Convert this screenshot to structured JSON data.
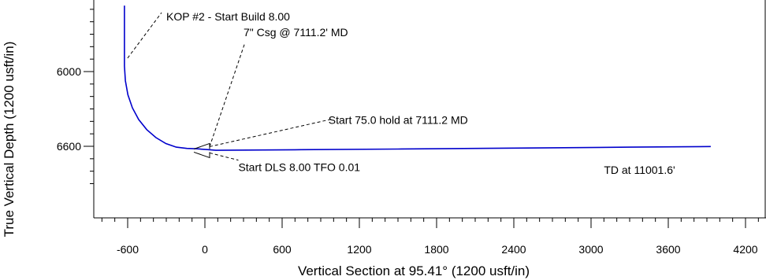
{
  "chart_data": {
    "type": "line",
    "xlabel": "Vertical Section at 95.41° (1200 usft/in)",
    "ylabel": "True Vertical Depth (1200 usft/in)",
    "xlim": [
      -880,
      4400
    ],
    "ylim": [
      5450,
      7000
    ],
    "y_inverted": true,
    "x_ticks": [
      -600,
      0,
      600,
      1200,
      1800,
      2400,
      3000,
      3600,
      4200
    ],
    "x_tick_labels": [
      "-600",
      "0",
      "600",
      "1200",
      "1800",
      "2400",
      "3000",
      "3600",
      "4200"
    ],
    "y_ticks": [
      6000,
      6600
    ],
    "y_tick_labels": [
      "6000",
      "6600"
    ],
    "grid": false,
    "series": [
      {
        "color": "#0000cc",
        "x": [
          -625,
          -625,
          -618,
          -598,
          -563,
          -514,
          -452,
          -381,
          -303,
          -222,
          -140,
          -62,
          10,
          85,
          700,
          1500,
          2500,
          3300,
          3930
        ],
        "y": [
          5470,
          5955,
          6073,
          6186,
          6291,
          6385,
          6466,
          6530,
          6578,
          6607,
          6617,
          6620,
          6626,
          6632,
          6628,
          6622,
          6614,
          6607,
          6602
        ]
      }
    ],
    "annotations": [
      {
        "text": "KOP #2 - Start Build 8.00",
        "point": [
          -625,
          5955
        ],
        "label_at": [
          -300,
          5590
        ]
      },
      {
        "text": "7\" Csg @ 7111.2' MD",
        "point": [
          0,
          6628
        ],
        "label_at": [
          300,
          5715
        ]
      },
      {
        "text": "Start 75.0 hold at 7111.2 MD",
        "point": [
          0,
          6628
        ],
        "label_at": [
          960,
          6420
        ]
      },
      {
        "text": "Start DLS 8.00 TFO 0.01",
        "point": [
          0,
          6628
        ],
        "label_at": [
          260,
          6800
        ]
      },
      {
        "text": "TD at 11001.6'",
        "point": null,
        "label_at": [
          3100,
          6820
        ]
      }
    ]
  }
}
